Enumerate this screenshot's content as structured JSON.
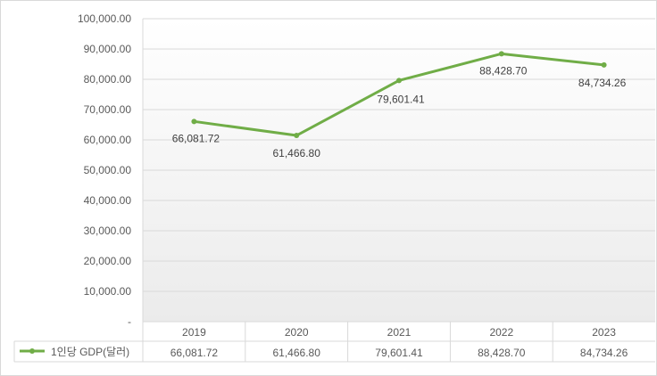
{
  "chart_data": {
    "type": "line",
    "categories": [
      "2019",
      "2020",
      "2021",
      "2022",
      "2023"
    ],
    "series": [
      {
        "name": "1인당 GDP(달러)",
        "values": [
          66081.72,
          61466.8,
          79601.41,
          88428.7,
          84734.26
        ],
        "value_labels": [
          "66,081.72",
          "61,466.80",
          "79,601.41",
          "88,428.70",
          "84,734.26"
        ],
        "color": "#70ad47"
      }
    ],
    "y_ticks": [
      "-",
      "10,000.00",
      "20,000.00",
      "30,000.00",
      "40,000.00",
      "50,000.00",
      "60,000.00",
      "70,000.00",
      "80,000.00",
      "90,000.00",
      "100,000.00"
    ],
    "ylim": [
      0,
      100000
    ],
    "grid": true,
    "legend": "data-table-left",
    "data_table": true
  }
}
